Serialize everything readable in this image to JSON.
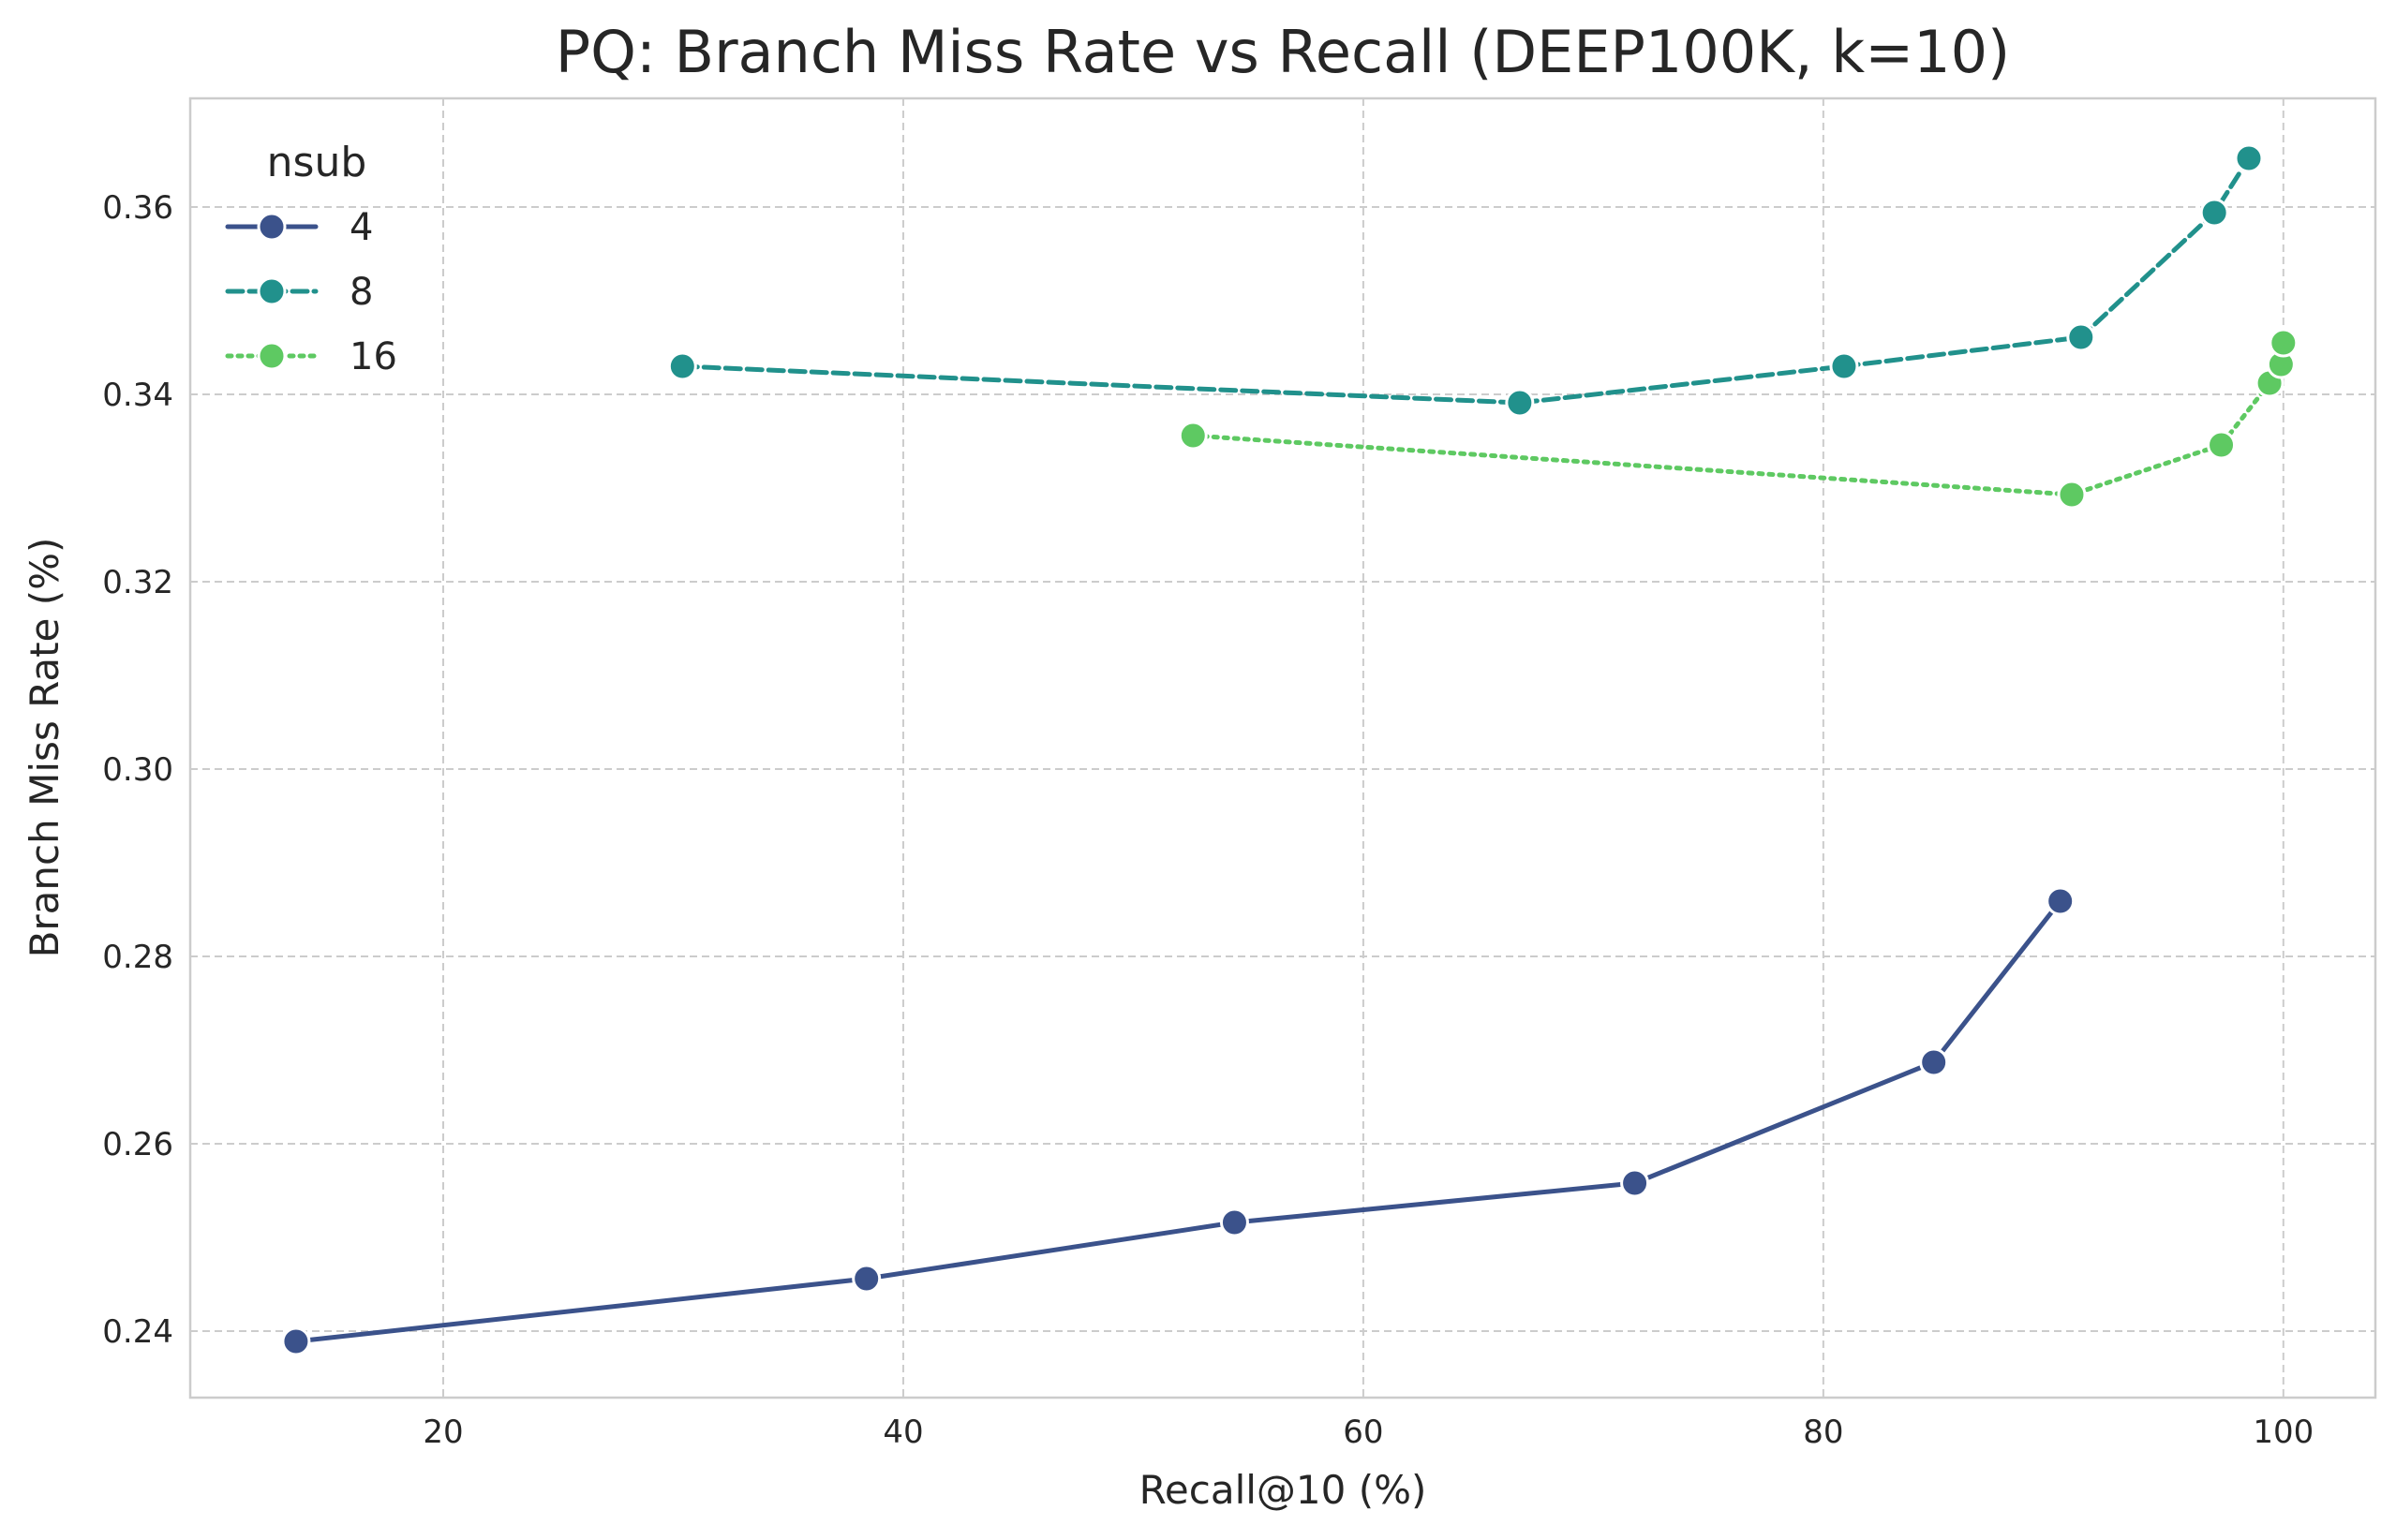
{
  "chart_data": {
    "type": "line",
    "title": "PQ: Branch Miss Rate vs Recall (DEEP100K, k=10)",
    "xlabel": "Recall@10 (%)",
    "ylabel": "Branch Miss Rate (%)",
    "xlim": [
      9,
      104
    ],
    "ylim": [
      0.2329,
      0.3716
    ],
    "xticks": [
      20,
      40,
      60,
      80,
      100
    ],
    "yticks": [
      0.24,
      0.26,
      0.28,
      0.3,
      0.32,
      0.34,
      0.36
    ],
    "ytick_labels": [
      "0.24",
      "0.26",
      "0.28",
      "0.30",
      "0.32",
      "0.34",
      "0.36"
    ],
    "grid": true,
    "legend": {
      "title": "nsub",
      "placement": "top-left"
    },
    "series": [
      {
        "name": "4",
        "color": "#3b528b",
        "dash": "solid",
        "x": [
          13.6,
          38.4,
          54.4,
          71.8,
          84.8,
          90.3
        ],
        "y": [
          0.2389,
          0.2456,
          0.2516,
          0.2558,
          0.2687,
          0.2859
        ]
      },
      {
        "name": "8",
        "color": "#21918c",
        "dash": "dashed",
        "x": [
          30.4,
          66.8,
          80.9,
          91.2,
          97.0,
          98.5
        ],
        "y": [
          0.343,
          0.3391,
          0.343,
          0.3461,
          0.3594,
          0.3652
        ]
      },
      {
        "name": "16",
        "color": "#5ec962",
        "dash": "dotted",
        "x": [
          52.6,
          90.8,
          97.3,
          99.4,
          99.9,
          100.0
        ],
        "y": [
          0.3356,
          0.3293,
          0.3346,
          0.3412,
          0.3432,
          0.3455
        ]
      }
    ]
  }
}
